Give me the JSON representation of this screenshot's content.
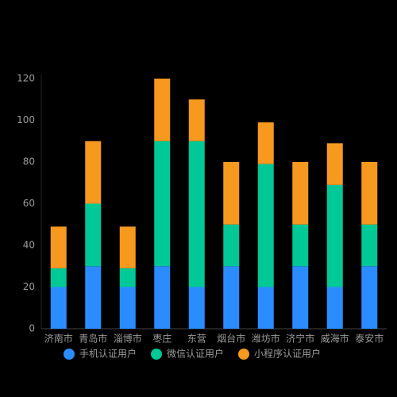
{
  "chart_data": {
    "type": "stacked_bar",
    "categories": [
      "济南市",
      "青岛市",
      "淄博市",
      "枣庄",
      "东营",
      "烟台市",
      "潍坊市",
      "济宁市",
      "威海市",
      "泰安市"
    ],
    "series": [
      {
        "name": "手机认证用户",
        "color": "#2b8cff",
        "values": [
          20,
          30,
          20,
          30,
          20,
          30,
          20,
          30,
          20,
          30
        ]
      },
      {
        "name": "微信认证用户",
        "color": "#00c896",
        "values": [
          9,
          30,
          9,
          60,
          70,
          20,
          59,
          20,
          49,
          20
        ]
      },
      {
        "name": "小程序认证用户",
        "color": "#f7981f",
        "values": [
          20,
          30,
          20,
          30,
          20,
          30,
          20,
          30,
          20,
          30
        ]
      }
    ],
    "ylim": [
      0,
      120
    ],
    "yticks": [
      0,
      20,
      40,
      60,
      80,
      100,
      120
    ],
    "grid": false,
    "legend": "bottom"
  }
}
